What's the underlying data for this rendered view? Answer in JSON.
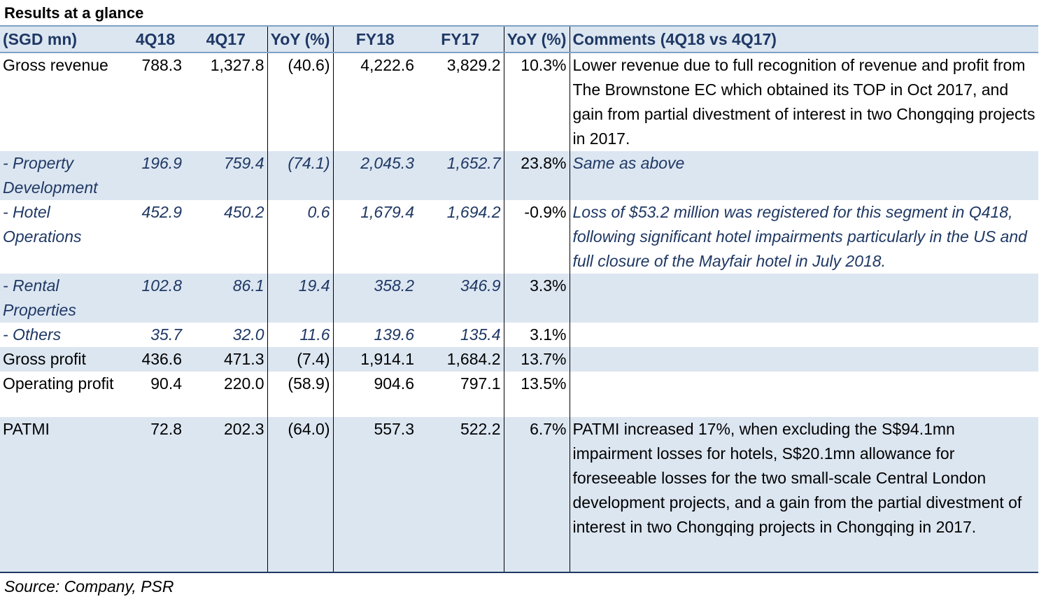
{
  "title": "Results at a glance",
  "headers": [
    "(SGD mn)",
    "4Q18",
    "4Q17",
    "YoY (%)",
    "FY18",
    "FY17",
    "YoY (%)",
    "Comments (4Q18 vs 4Q17)"
  ],
  "rows": [
    {
      "label": "Gross revenue",
      "q418": "788.3",
      "q417": "1,327.8",
      "yoy_q": "(40.6)",
      "fy18": "4,222.6",
      "fy17": "3,829.2",
      "yoy_fy": "10.3%",
      "comment": "Lower revenue due to full recognition of revenue and profit from The Brownstone EC which obtained its TOP in Oct 2017, and gain from partial divestment of interest in two Chongqing projects in 2017."
    },
    {
      "label": " - Property Development",
      "q418": "196.9",
      "q417": "759.4",
      "yoy_q": "(74.1)",
      "fy18": "2,045.3",
      "fy17": "1,652.7",
      "yoy_fy": "23.8%",
      "comment": "Same as above"
    },
    {
      "label": " - Hotel Operations",
      "q418": "452.9",
      "q417": "450.2",
      "yoy_q": "0.6",
      "fy18": "1,679.4",
      "fy17": "1,694.2",
      "yoy_fy": "-0.9%",
      "comment": "Loss of $53.2 million was registered for this segment in Q418, following significant hotel impairments particularly in the US and full closure of the Mayfair hotel in July 2018."
    },
    {
      "label": " - Rental Properties",
      "q418": "102.8",
      "q417": "86.1",
      "yoy_q": "19.4",
      "fy18": "358.2",
      "fy17": "346.9",
      "yoy_fy": "3.3%",
      "comment": ""
    },
    {
      "label": " - Others",
      "q418": "35.7",
      "q417": "32.0",
      "yoy_q": "11.6",
      "fy18": "139.6",
      "fy17": "135.4",
      "yoy_fy": "3.1%",
      "comment": ""
    },
    {
      "label": "Gross profit",
      "q418": "436.6",
      "q417": "471.3",
      "yoy_q": "(7.4)",
      "fy18": "1,914.1",
      "fy17": "1,684.2",
      "yoy_fy": "13.7%",
      "comment": ""
    },
    {
      "label": "Operating profit",
      "q418": "90.4",
      "q417": "220.0",
      "yoy_q": "(58.9)",
      "fy18": "904.6",
      "fy17": "797.1",
      "yoy_fy": "13.5%",
      "comment": ""
    },
    {
      "label": "PATMI",
      "q418": "72.8",
      "q417": "202.3",
      "yoy_q": "(64.0)",
      "fy18": "557.3",
      "fy17": "522.2",
      "yoy_fy": "6.7%",
      "comment": "PATMI increased 17%, when excluding the S$94.1mn impairment losses for hotels, S$20.1mn allowance for foreseeable losses for the two small-scale Central London development projects, and a gain from the partial divestment of interest in two Chongqing projects in Chongqing in 2017."
    }
  ],
  "source": "Source: Company, PSR"
}
